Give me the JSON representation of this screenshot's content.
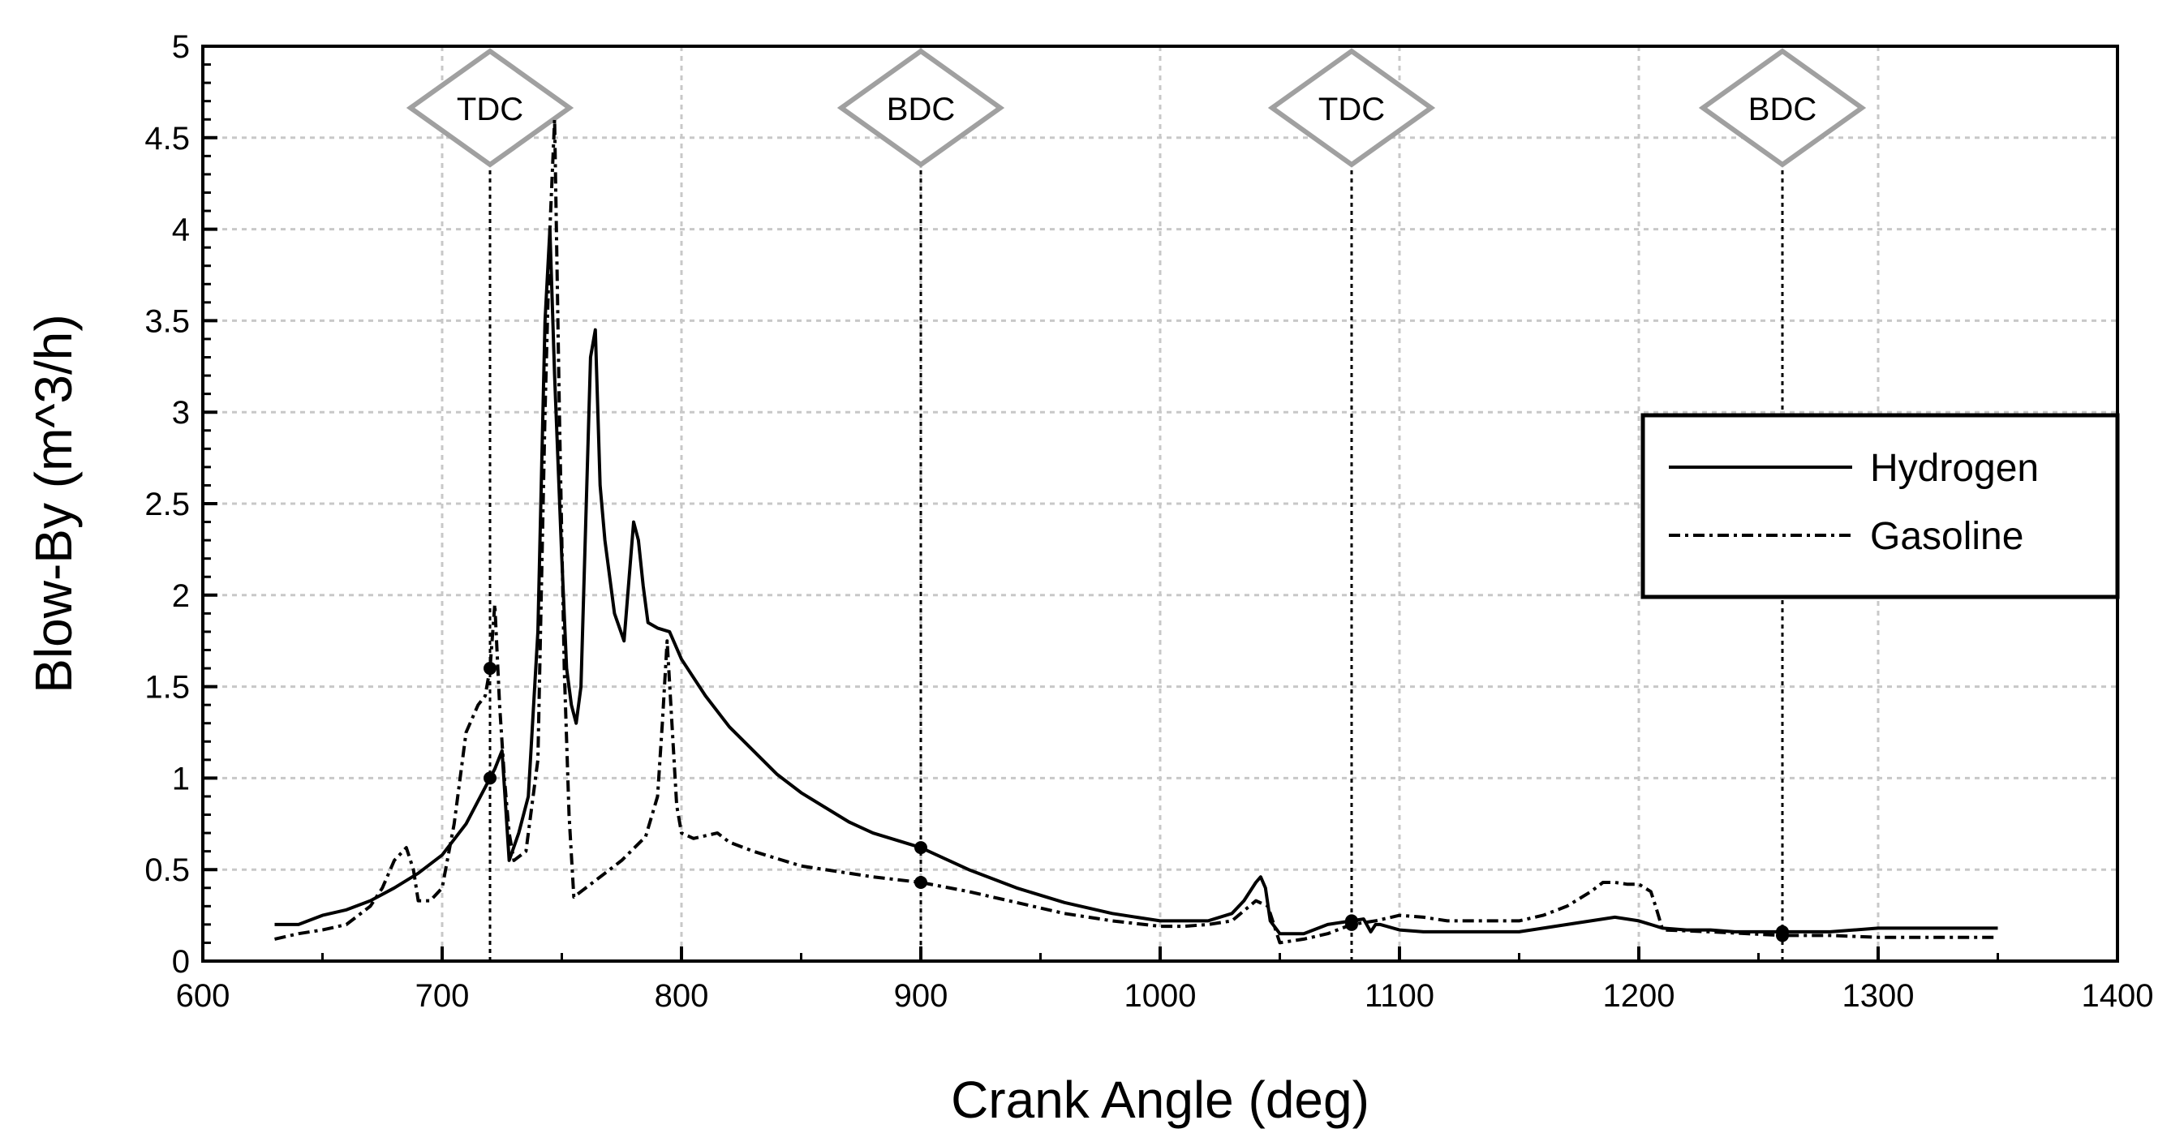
{
  "chart_data": {
    "type": "line",
    "title": "",
    "xlabel": "Crank Angle (deg)",
    "ylabel": "Blow-By (m^3/h)",
    "xlim": [
      600,
      1400
    ],
    "ylim": [
      0,
      5
    ],
    "xticks": [
      "600",
      "700",
      "800",
      "900",
      "1000",
      "1100",
      "1200",
      "1300",
      "1400"
    ],
    "yticks": [
      "0",
      "0.5",
      "1",
      "1.5",
      "2",
      "2.5",
      "3",
      "3.5",
      "4",
      "4.5",
      "5"
    ],
    "grid": true,
    "legend_position": "right",
    "markers": [
      {
        "label": "TDC",
        "x": 720
      },
      {
        "label": "BDC",
        "x": 900
      },
      {
        "label": "TDC",
        "x": 1080
      },
      {
        "label": "BDC",
        "x": 1260
      }
    ],
    "series": [
      {
        "name": "Hydrogen",
        "style": "solid",
        "color": "#000000",
        "x": [
          630,
          640,
          650,
          660,
          670,
          680,
          690,
          700,
          710,
          718,
          722,
          725,
          728,
          732,
          736,
          740,
          743,
          745,
          747,
          750,
          752,
          754,
          756,
          758,
          760,
          762,
          764,
          766,
          768,
          772,
          776,
          780,
          782,
          784,
          786,
          790,
          795,
          800,
          810,
          820,
          830,
          840,
          850,
          860,
          870,
          880,
          890,
          900,
          910,
          920,
          930,
          940,
          950,
          960,
          970,
          980,
          990,
          1000,
          1010,
          1020,
          1030,
          1035,
          1040,
          1042,
          1044,
          1046,
          1050,
          1060,
          1070,
          1080,
          1085,
          1088,
          1090,
          1092,
          1100,
          1110,
          1120,
          1130,
          1140,
          1150,
          1160,
          1170,
          1180,
          1185,
          1190,
          1195,
          1200,
          1210,
          1220,
          1230,
          1240,
          1250,
          1260,
          1280,
          1300,
          1320,
          1340,
          1350
        ],
        "y": [
          0.2,
          0.2,
          0.25,
          0.28,
          0.33,
          0.4,
          0.48,
          0.58,
          0.75,
          0.95,
          1.05,
          1.15,
          0.55,
          0.7,
          0.9,
          1.8,
          3.5,
          4.0,
          3.2,
          2.2,
          1.6,
          1.4,
          1.3,
          1.5,
          2.4,
          3.3,
          3.45,
          2.6,
          2.3,
          1.9,
          1.75,
          2.4,
          2.3,
          2.05,
          1.85,
          1.82,
          1.8,
          1.65,
          1.45,
          1.28,
          1.15,
          1.02,
          0.92,
          0.84,
          0.76,
          0.7,
          0.66,
          0.62,
          0.56,
          0.5,
          0.45,
          0.4,
          0.36,
          0.32,
          0.29,
          0.26,
          0.24,
          0.22,
          0.22,
          0.22,
          0.26,
          0.33,
          0.43,
          0.46,
          0.4,
          0.22,
          0.15,
          0.15,
          0.2,
          0.22,
          0.23,
          0.16,
          0.2,
          0.2,
          0.17,
          0.16,
          0.16,
          0.16,
          0.16,
          0.16,
          0.18,
          0.2,
          0.22,
          0.23,
          0.24,
          0.23,
          0.22,
          0.18,
          0.17,
          0.17,
          0.16,
          0.16,
          0.16,
          0.16,
          0.18,
          0.18,
          0.18,
          0.18
        ]
      },
      {
        "name": "Gasoline",
        "style": "dashdot",
        "color": "#000000",
        "x": [
          630,
          640,
          650,
          660,
          670,
          675,
          680,
          685,
          688,
          690,
          695,
          700,
          705,
          710,
          715,
          718,
          720,
          722,
          724,
          726,
          728,
          730,
          735,
          740,
          743,
          745,
          747,
          749,
          751,
          753,
          755,
          758,
          765,
          775,
          785,
          790,
          792,
          794,
          796,
          798,
          800,
          805,
          815,
          820,
          830,
          840,
          850,
          860,
          880,
          900,
          920,
          940,
          960,
          980,
          1000,
          1010,
          1020,
          1030,
          1040,
          1045,
          1050,
          1060,
          1070,
          1080,
          1090,
          1100,
          1110,
          1120,
          1130,
          1140,
          1150,
          1160,
          1170,
          1180,
          1185,
          1190,
          1195,
          1200,
          1205,
          1207,
          1210,
          1230,
          1260,
          1280,
          1300,
          1320,
          1350
        ],
        "y": [
          0.12,
          0.15,
          0.17,
          0.2,
          0.3,
          0.4,
          0.55,
          0.62,
          0.5,
          0.33,
          0.33,
          0.4,
          0.75,
          1.25,
          1.4,
          1.45,
          1.6,
          1.95,
          1.4,
          1.0,
          0.7,
          0.55,
          0.6,
          1.1,
          3.0,
          4.0,
          4.6,
          3.0,
          1.6,
          0.8,
          0.35,
          0.38,
          0.45,
          0.55,
          0.68,
          0.9,
          1.3,
          1.75,
          1.3,
          0.85,
          0.7,
          0.67,
          0.7,
          0.65,
          0.6,
          0.56,
          0.52,
          0.5,
          0.46,
          0.43,
          0.38,
          0.32,
          0.26,
          0.22,
          0.19,
          0.19,
          0.2,
          0.22,
          0.33,
          0.3,
          0.1,
          0.12,
          0.15,
          0.2,
          0.22,
          0.25,
          0.24,
          0.22,
          0.22,
          0.22,
          0.22,
          0.25,
          0.3,
          0.38,
          0.43,
          0.43,
          0.42,
          0.42,
          0.38,
          0.3,
          0.17,
          0.16,
          0.14,
          0.14,
          0.13,
          0.13,
          0.13
        ]
      }
    ]
  }
}
